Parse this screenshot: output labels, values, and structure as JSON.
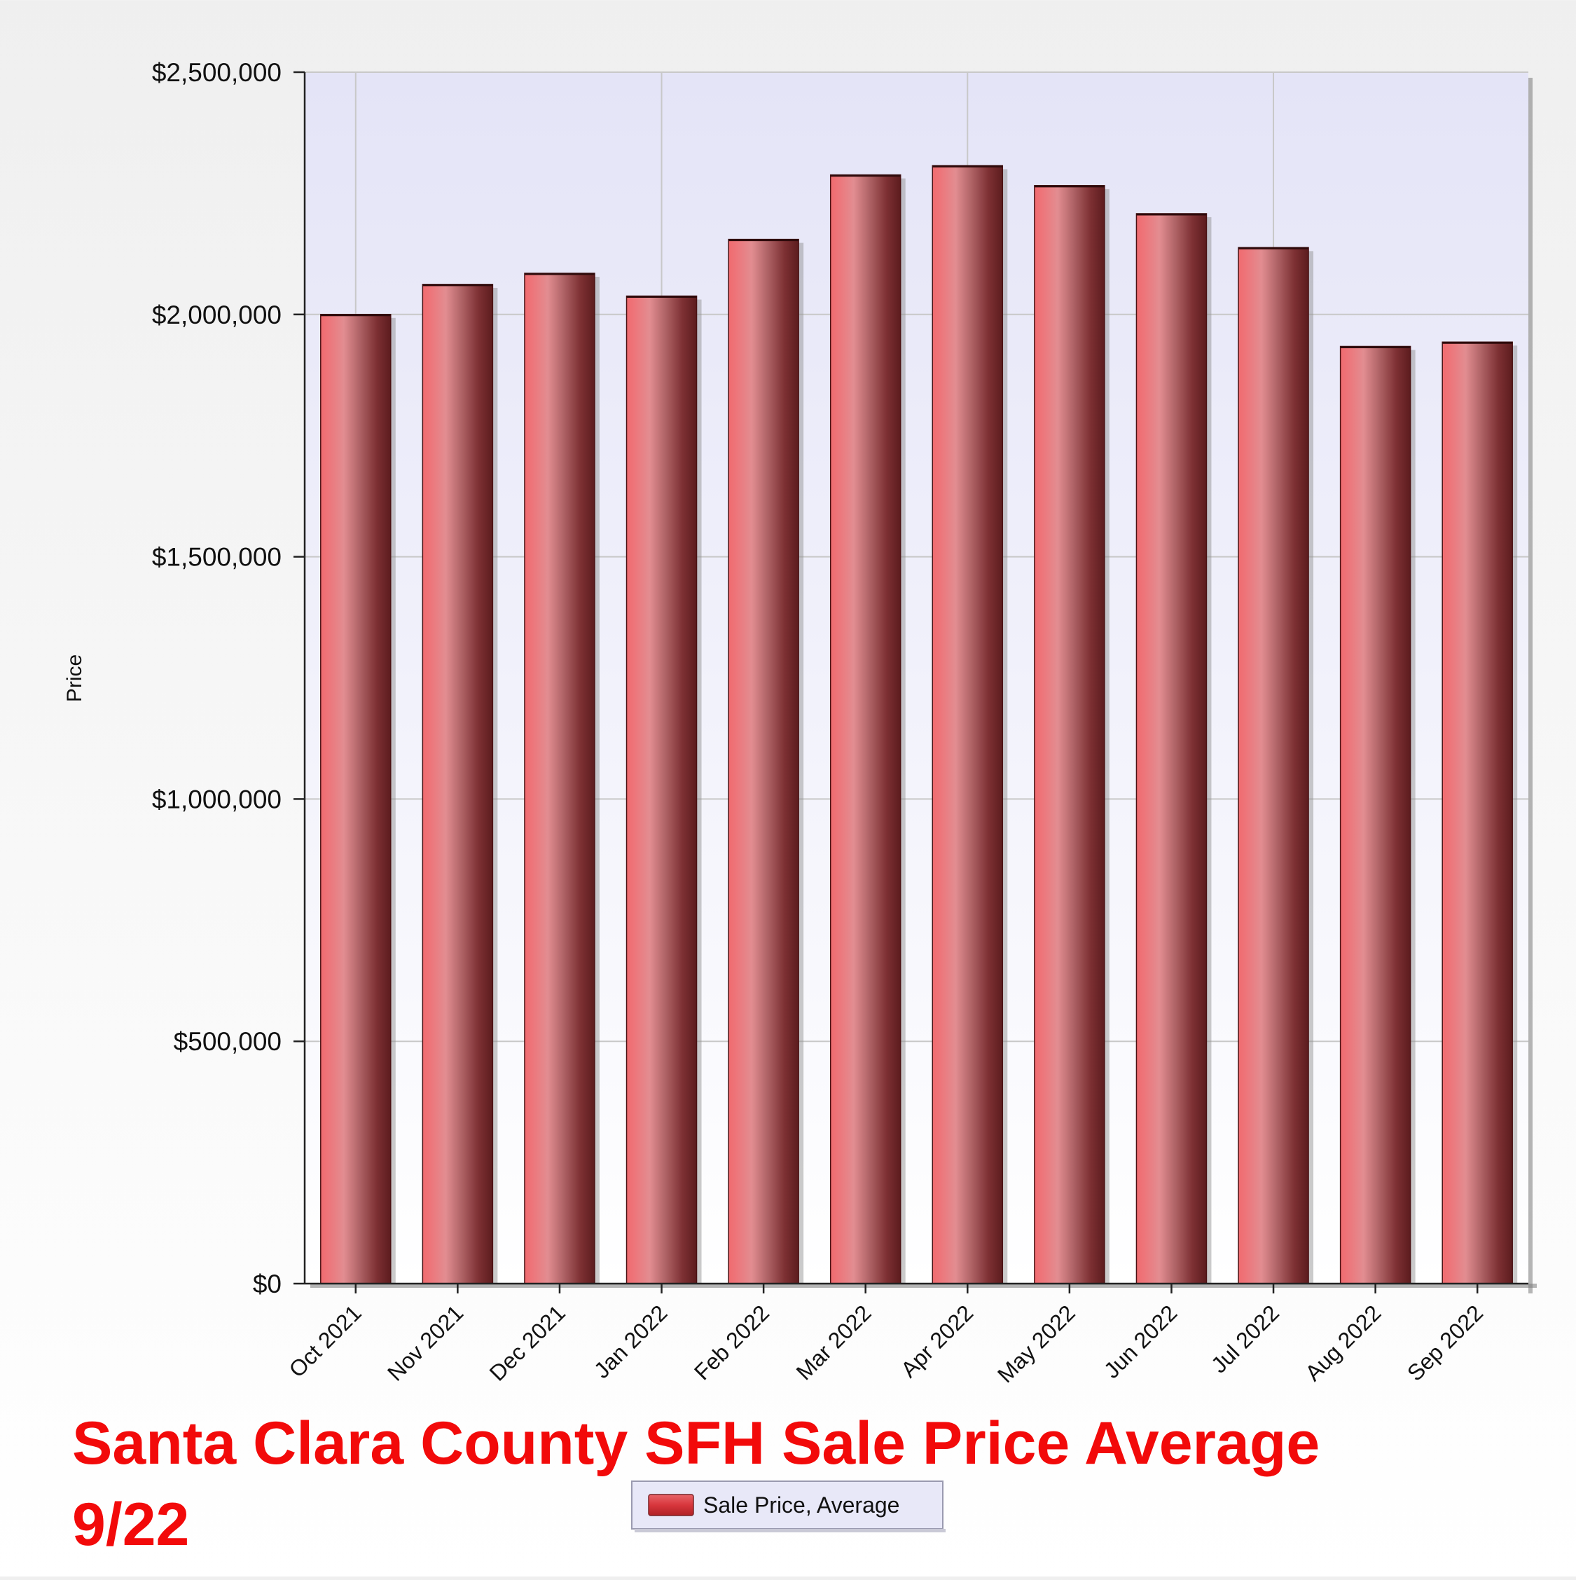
{
  "chart_data": {
    "type": "bar",
    "title_lines": [
      "Santa Clara County SFH Sale Price Average",
      "9/22"
    ],
    "ylabel": "Price",
    "xlabel": "",
    "categories": [
      "Oct 2021",
      "Nov 2021",
      "Dec 2021",
      "Jan 2022",
      "Feb 2022",
      "Mar 2022",
      "Apr 2022",
      "May 2022",
      "Jun 2022",
      "Jul 2022",
      "Aug 2022",
      "Sep 2022"
    ],
    "series": [
      {
        "name": "Sale Price, Average",
        "values": [
          2000000,
          2062000,
          2085000,
          2038000,
          2155000,
          2288000,
          2307000,
          2266000,
          2208000,
          2138000,
          1934000,
          1943000
        ]
      }
    ],
    "ylim": [
      0,
      2500000
    ],
    "yticks": [
      0,
      500000,
      1000000,
      1500000,
      2000000,
      2500000
    ],
    "ytick_labels": [
      "$0",
      "$500,000",
      "$1,000,000",
      "$1,500,000",
      "$2,000,000",
      "$2,500,000"
    ],
    "grid": true,
    "legend_position": "bottom",
    "colors": {
      "bar_light": "#f06b6f",
      "bar_mid": "#e28a8e",
      "bar_dark": "#5c1c1e",
      "plot_bg_top": "#e4e4f7",
      "plot_bg_bottom": "#ffffff",
      "grid": "#c8c8c8",
      "title": "#f20a0a",
      "legend_bg": "#e8e8f8"
    }
  }
}
